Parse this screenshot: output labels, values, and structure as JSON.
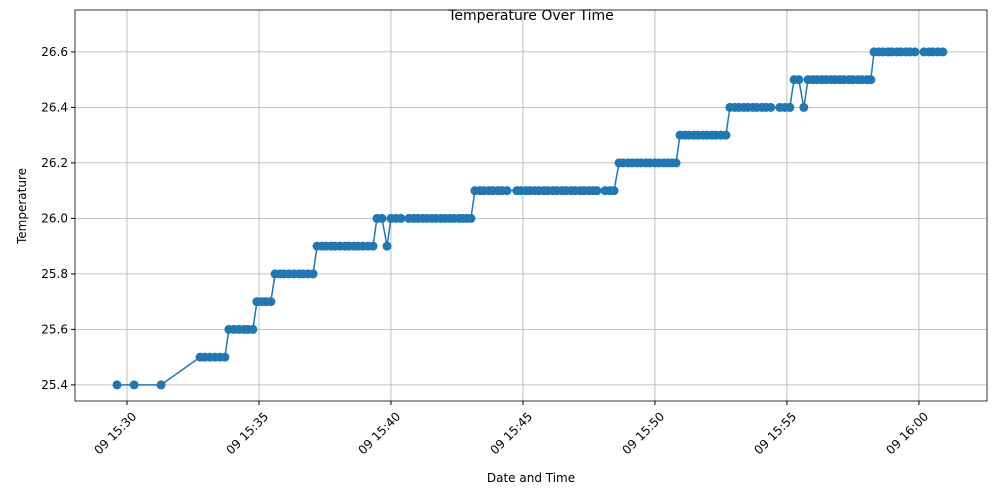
{
  "chart_data": {
    "type": "line",
    "title": "Temperature Over Time",
    "x_label": "Date and Time",
    "y_label": "Temperature",
    "x": [
      29.62,
      30.27,
      31.29,
      32.77,
      32.95,
      33.14,
      33.33,
      33.52,
      33.71,
      33.86,
      34.05,
      34.24,
      34.43,
      34.58,
      34.77,
      34.92,
      35.11,
      35.27,
      35.45,
      35.61,
      35.8,
      35.95,
      36.14,
      36.33,
      36.52,
      36.67,
      36.86,
      37.05,
      37.2,
      37.39,
      37.54,
      37.73,
      37.88,
      38.07,
      38.26,
      38.41,
      38.6,
      38.75,
      38.94,
      39.13,
      39.32,
      39.47,
      39.66,
      39.85,
      40.0,
      40.19,
      40.38,
      40.68,
      40.87,
      41.02,
      41.21,
      41.36,
      41.55,
      41.7,
      41.89,
      42.05,
      42.23,
      42.39,
      42.58,
      42.73,
      42.88,
      43.03,
      43.18,
      43.37,
      43.52,
      43.71,
      43.86,
      44.05,
      44.2,
      44.39,
      44.77,
      44.92,
      45.11,
      45.27,
      45.45,
      45.61,
      45.8,
      45.95,
      46.14,
      46.29,
      46.48,
      46.63,
      46.82,
      46.97,
      47.16,
      47.31,
      47.5,
      47.65,
      47.8,
      48.11,
      48.3,
      48.45,
      48.64,
      48.79,
      48.98,
      49.13,
      49.32,
      49.47,
      49.66,
      49.81,
      50.0,
      50.15,
      50.34,
      50.49,
      50.64,
      50.8,
      50.95,
      51.14,
      51.29,
      51.48,
      51.63,
      51.82,
      51.97,
      52.16,
      52.31,
      52.5,
      52.69,
      52.84,
      53.03,
      53.18,
      53.37,
      53.52,
      53.71,
      53.86,
      54.05,
      54.2,
      54.39,
      54.73,
      54.92,
      55.11,
      55.27,
      55.45,
      55.64,
      55.8,
      55.98,
      56.14,
      56.33,
      56.48,
      56.67,
      56.82,
      57.01,
      57.16,
      57.35,
      57.5,
      57.69,
      57.84,
      58.03,
      58.18,
      58.3,
      58.48,
      58.64,
      58.83,
      58.98,
      59.17,
      59.32,
      59.51,
      59.66,
      59.85,
      60.19,
      60.38,
      60.53,
      60.72,
      60.91
    ],
    "series": [
      {
        "name": "Temperature",
        "color": "#1f77b4",
        "values": [
          25.4,
          25.4,
          25.4,
          25.5,
          25.5,
          25.5,
          25.5,
          25.5,
          25.5,
          25.6,
          25.6,
          25.6,
          25.6,
          25.6,
          25.6,
          25.7,
          25.7,
          25.7,
          25.7,
          25.8,
          25.8,
          25.8,
          25.8,
          25.8,
          25.8,
          25.8,
          25.8,
          25.8,
          25.9,
          25.9,
          25.9,
          25.9,
          25.9,
          25.9,
          25.9,
          25.9,
          25.9,
          25.9,
          25.9,
          25.9,
          25.9,
          26.0,
          26.0,
          25.9,
          26.0,
          26.0,
          26.0,
          26.0,
          26.0,
          26.0,
          26.0,
          26.0,
          26.0,
          26.0,
          26.0,
          26.0,
          26.0,
          26.0,
          26.0,
          26.0,
          26.0,
          26.0,
          26.1,
          26.1,
          26.1,
          26.1,
          26.1,
          26.1,
          26.1,
          26.1,
          26.1,
          26.1,
          26.1,
          26.1,
          26.1,
          26.1,
          26.1,
          26.1,
          26.1,
          26.1,
          26.1,
          26.1,
          26.1,
          26.1,
          26.1,
          26.1,
          26.1,
          26.1,
          26.1,
          26.1,
          26.1,
          26.1,
          26.2,
          26.2,
          26.2,
          26.2,
          26.2,
          26.2,
          26.2,
          26.2,
          26.2,
          26.2,
          26.2,
          26.2,
          26.2,
          26.2,
          26.3,
          26.3,
          26.3,
          26.3,
          26.3,
          26.3,
          26.3,
          26.3,
          26.3,
          26.3,
          26.3,
          26.4,
          26.4,
          26.4,
          26.4,
          26.4,
          26.4,
          26.4,
          26.4,
          26.4,
          26.4,
          26.4,
          26.4,
          26.4,
          26.5,
          26.5,
          26.4,
          26.5,
          26.5,
          26.5,
          26.5,
          26.5,
          26.5,
          26.5,
          26.5,
          26.5,
          26.5,
          26.5,
          26.5,
          26.5,
          26.5,
          26.5,
          26.6,
          26.6,
          26.6,
          26.6,
          26.6,
          26.6,
          26.6,
          26.6,
          26.6,
          26.6,
          26.6,
          26.6,
          26.6,
          26.6,
          26.6
        ]
      }
    ],
    "xlim": [
      28.03,
      62.58
    ],
    "xticks": [
      {
        "value": 30,
        "label": "09 15:30"
      },
      {
        "value": 35,
        "label": "09 15:35"
      },
      {
        "value": 40,
        "label": "09 15:40"
      },
      {
        "value": 45,
        "label": "09 15:45"
      },
      {
        "value": 50,
        "label": "09 15:50"
      },
      {
        "value": 55,
        "label": "09 15:55"
      },
      {
        "value": 60,
        "label": "09 16:00"
      }
    ],
    "ylim": [
      25.342,
      26.751
    ],
    "yticks": [
      {
        "value": 25.4,
        "label": "25.4"
      },
      {
        "value": 25.6,
        "label": "25.6"
      },
      {
        "value": 25.8,
        "label": "25.8"
      },
      {
        "value": 26.0,
        "label": "26.0"
      },
      {
        "value": 26.2,
        "label": "26.2"
      },
      {
        "value": 26.4,
        "label": "26.4"
      },
      {
        "value": 26.6,
        "label": "26.6"
      }
    ],
    "grid": true
  }
}
